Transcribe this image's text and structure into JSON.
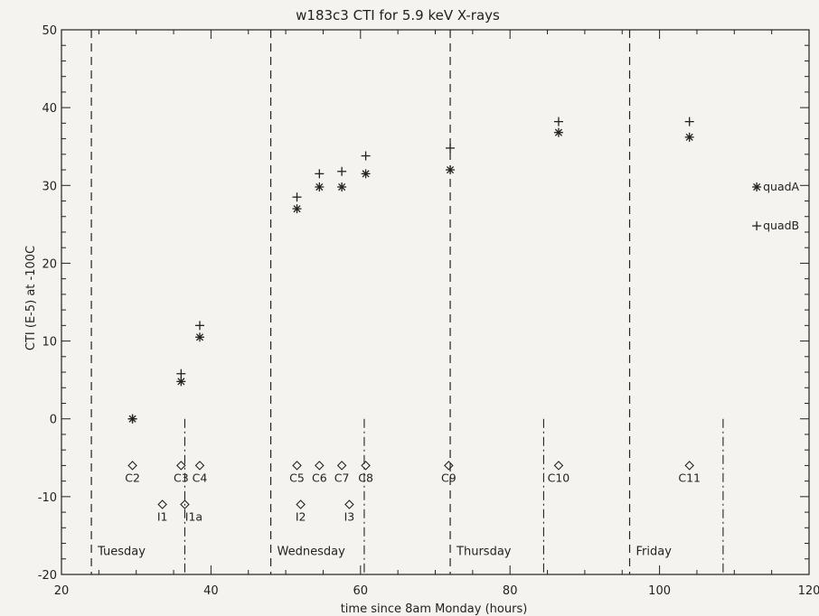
{
  "chart_data": {
    "type": "scatter",
    "title": "w183c3 CTI for 5.9 keV X-rays",
    "xlabel": "time since 8am Monday (hours)",
    "ylabel": "CTI (E-5) at -100C",
    "xlim": [
      20,
      120
    ],
    "ylim": [
      -20,
      50
    ],
    "x_ticks": [
      20,
      40,
      60,
      80,
      100,
      120
    ],
    "y_ticks": [
      -20,
      -10,
      0,
      10,
      20,
      30,
      40,
      50
    ],
    "x_minor_step": 5,
    "y_minor_step": 2,
    "grid": false,
    "legend_position": "right",
    "series": [
      {
        "name": "quadA",
        "marker": "asterisk",
        "points": [
          {
            "x": 29.5,
            "y": 0
          },
          {
            "x": 36,
            "y": 4.8
          },
          {
            "x": 38.5,
            "y": 10.5
          },
          {
            "x": 51.5,
            "y": 27
          },
          {
            "x": 54.5,
            "y": 29.8
          },
          {
            "x": 57.5,
            "y": 29.8
          },
          {
            "x": 60.7,
            "y": 31.5
          },
          {
            "x": 72,
            "y": 32
          },
          {
            "x": 86.5,
            "y": 36.8
          },
          {
            "x": 104,
            "y": 36.2
          }
        ]
      },
      {
        "name": "quadB",
        "marker": "plus",
        "points": [
          {
            "x": 29.5,
            "y": 0
          },
          {
            "x": 36,
            "y": 5.8
          },
          {
            "x": 38.5,
            "y": 12
          },
          {
            "x": 51.5,
            "y": 28.5
          },
          {
            "x": 54.5,
            "y": 31.5
          },
          {
            "x": 57.5,
            "y": 31.8
          },
          {
            "x": 60.7,
            "y": 33.8
          },
          {
            "x": 72,
            "y": 34.8
          },
          {
            "x": 86.5,
            "y": 38.2
          },
          {
            "x": 104,
            "y": 38.2
          }
        ]
      }
    ],
    "legend": [
      {
        "name": "quadA",
        "marker": "asterisk",
        "y": 29.8
      },
      {
        "name": "quadB",
        "marker": "plus",
        "y": 24.8
      }
    ],
    "markers_diamond": [
      {
        "x": 29.5,
        "y": -6,
        "label": "C2",
        "label_dx": 0,
        "label_dy": 18
      },
      {
        "x": 36,
        "y": -6,
        "label": "C3",
        "label_dx": 0,
        "label_dy": 18
      },
      {
        "x": 38.5,
        "y": -6,
        "label": "C4",
        "label_dx": 0,
        "label_dy": 18
      },
      {
        "x": 51.5,
        "y": -6,
        "label": "C5",
        "label_dx": 0,
        "label_dy": 18
      },
      {
        "x": 54.5,
        "y": -6,
        "label": "C6",
        "label_dx": 0,
        "label_dy": 18
      },
      {
        "x": 57.5,
        "y": -6,
        "label": "C7",
        "label_dx": 0,
        "label_dy": 18
      },
      {
        "x": 60.7,
        "y": -6,
        "label": "C8",
        "label_dx": 0,
        "label_dy": 18
      },
      {
        "x": 71.8,
        "y": -6,
        "label": "C9",
        "label_dx": 0,
        "label_dy": 18
      },
      {
        "x": 86.5,
        "y": -6,
        "label": "C10",
        "label_dx": 0,
        "label_dy": 18
      },
      {
        "x": 104,
        "y": -6,
        "label": "C11",
        "label_dx": 0,
        "label_dy": 18
      },
      {
        "x": 33.5,
        "y": -11,
        "label": "I1",
        "label_dx": 0,
        "label_dy": 18
      },
      {
        "x": 36.5,
        "y": -11,
        "label": "I1a",
        "label_dx": 10,
        "label_dy": 18
      },
      {
        "x": 52,
        "y": -11,
        "label": "I2",
        "label_dx": 0,
        "label_dy": 18
      },
      {
        "x": 58.5,
        "y": -11,
        "label": "I3",
        "label_dx": 0,
        "label_dy": 18
      }
    ],
    "day_lines": [
      {
        "x": 24,
        "label": "Tuesday"
      },
      {
        "x": 48,
        "label": "Wednesday"
      },
      {
        "x": 72,
        "label": "Thursday"
      },
      {
        "x": 96,
        "label": "Friday"
      }
    ],
    "dashdot_lines": [
      {
        "x": 36.5,
        "y_top": 0
      },
      {
        "x": 60.5,
        "y_top": 0
      },
      {
        "x": 84.5,
        "y_top": 0
      },
      {
        "x": 108.5,
        "y_top": 0
      }
    ],
    "colors": {
      "ink": "#222222",
      "background": "#f4f3f0"
    }
  }
}
